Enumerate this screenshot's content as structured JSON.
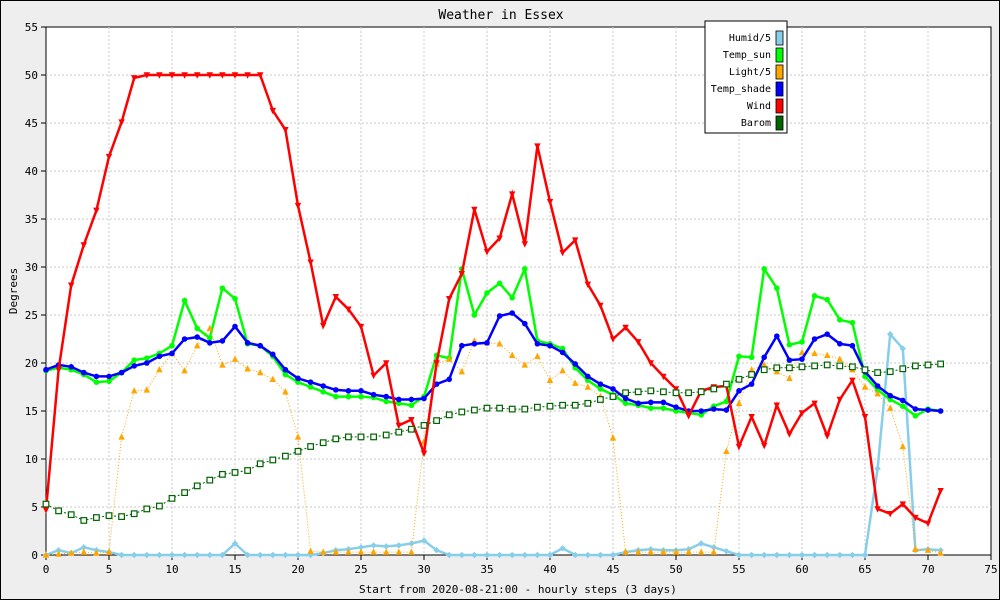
{
  "chart_data": {
    "type": "line",
    "title": "Weather in Essex",
    "xlabel": "Start from 2020-08-21:00 - hourly steps (3 days)",
    "ylabel": "Degrees",
    "xlim": [
      0,
      75
    ],
    "ylim": [
      0,
      55
    ],
    "x_ticks": [
      0,
      5,
      10,
      15,
      20,
      25,
      30,
      35,
      40,
      45,
      50,
      55,
      60,
      65,
      70,
      75
    ],
    "y_ticks": [
      0,
      5,
      10,
      15,
      20,
      25,
      30,
      35,
      40,
      45,
      50,
      55
    ],
    "grid": true,
    "legend_position": "top-right",
    "series": [
      {
        "name": "Humid/5",
        "color": "#87ceeb",
        "marker": "diamond",
        "values": [
          0,
          0.5,
          0.2,
          0.8,
          0.5,
          0.3,
          0,
          0,
          0,
          0,
          0,
          0,
          0,
          0,
          0,
          1.2,
          0,
          0,
          0,
          0,
          0,
          0,
          0.2,
          0.5,
          0.6,
          0.8,
          1,
          0.9,
          1,
          1.2,
          1.5,
          0.5,
          0,
          0,
          0,
          0,
          0,
          0,
          0,
          0,
          0,
          0.7,
          0,
          0,
          0,
          0,
          0.3,
          0.5,
          0.6,
          0.5,
          0.5,
          0.6,
          1.2,
          0.8,
          0.4,
          0,
          0,
          0,
          0,
          0,
          0,
          0,
          0,
          0,
          0,
          0,
          9,
          23,
          21.5,
          0.5,
          0.6,
          0.5
        ]
      },
      {
        "name": "Temp_sun",
        "color": "#00ff00",
        "marker": "circle",
        "values": [
          19.2,
          19.5,
          19.3,
          18.8,
          18,
          18.1,
          19,
          20.3,
          20.5,
          21,
          21.8,
          26.5,
          23.6,
          22.6,
          27.8,
          26.7,
          22,
          21.8,
          20.7,
          18.8,
          18,
          17.5,
          17,
          16.5,
          16.5,
          16.5,
          16.4,
          16,
          15.8,
          15.6,
          16.5,
          20.8,
          20.5,
          29.8,
          25,
          27.3,
          28.3,
          26.8,
          29.8,
          22.3,
          22,
          21.5,
          19.5,
          18.2,
          17.3,
          16.7,
          15.8,
          15.6,
          15.3,
          15.3,
          15,
          14.8,
          14.6,
          15.5,
          16,
          20.7,
          20.6,
          29.8,
          27.8,
          21.9,
          22.2,
          27,
          26.6,
          24.5,
          24.2,
          18.6,
          17.2,
          16.2,
          15.5,
          14.5,
          15.2,
          15
        ]
      },
      {
        "name": "Light/5",
        "color": "#ffa500",
        "marker": "triangle-up",
        "values": [
          0,
          0.1,
          0.2,
          0.3,
          0.2,
          0.3,
          12.3,
          17.1,
          17.2,
          19.3,
          21,
          19.2,
          21.8,
          23.6,
          19.8,
          20.4,
          19.4,
          19,
          18.3,
          17,
          12.3,
          0.4,
          0.3,
          0.3,
          0.3,
          0.3,
          0.3,
          0.3,
          0.3,
          0.3,
          11.8,
          19.9,
          20.4,
          19.1,
          22.3,
          22.1,
          22,
          20.8,
          19.8,
          20.7,
          18.2,
          19.2,
          17.9,
          17.5,
          16.5,
          12.2,
          0.3,
          0.3,
          0.3,
          0.3,
          0.3,
          0.3,
          0.3,
          0.3,
          10.8,
          15.8,
          19.3,
          19.8,
          19.1,
          18.4,
          21.1,
          21,
          20.8,
          20.4,
          19.3,
          17.5,
          16.8,
          15.3,
          11.3,
          0.6,
          0.5,
          0.2
        ]
      },
      {
        "name": "Temp_shade",
        "color": "#0000ff",
        "marker": "circle",
        "values": [
          19.3,
          19.8,
          19.6,
          19,
          18.6,
          18.6,
          19,
          19.7,
          20,
          20.7,
          21,
          22.5,
          22.7,
          22.1,
          22.3,
          23.8,
          22.1,
          21.8,
          20.9,
          19.3,
          18.4,
          18,
          17.6,
          17.2,
          17.1,
          17.1,
          16.7,
          16.5,
          16.2,
          16.2,
          16.3,
          17.8,
          18.3,
          21.8,
          22,
          22.1,
          24.9,
          25.2,
          24.1,
          22,
          21.8,
          21.1,
          19.9,
          18.6,
          17.8,
          17.3,
          16.3,
          15.8,
          15.9,
          15.9,
          15.4,
          15,
          15,
          15.2,
          15.1,
          17.1,
          17.8,
          20.6,
          22.8,
          20.3,
          20.4,
          22.5,
          23,
          22,
          21.8,
          19.1,
          17.6,
          16.6,
          16.1,
          15.2,
          15.1,
          15
        ]
      },
      {
        "name": "Wind",
        "color": "#ff0000",
        "marker": "triangle-down",
        "values": [
          4.7,
          19.3,
          28.1,
          32.3,
          35.9,
          41.5,
          45.1,
          49.7,
          50,
          50,
          50,
          50,
          50,
          50,
          50,
          50,
          50,
          50,
          46.3,
          44.3,
          36.4,
          30.5,
          23.9,
          26.9,
          25.6,
          23.8,
          18.7,
          20,
          13.5,
          14.1,
          10.6,
          20,
          26.7,
          29.3,
          36,
          31.6,
          33,
          37.6,
          32.4,
          42.6,
          36.8,
          31.5,
          32.8,
          28.2,
          26,
          22.5,
          23.7,
          22.2,
          20,
          18.6,
          17.3,
          14.5,
          17.1,
          17.5,
          17.6,
          11.3,
          14.4,
          11.4,
          15.6,
          12.6,
          14.8,
          15.8,
          12.4,
          16.2,
          18.2,
          14.4,
          4.8,
          4.3,
          5.3,
          3.9,
          3.3,
          6.7
        ]
      },
      {
        "name": "Barom",
        "color": "#006400",
        "marker": "square",
        "values": [
          5.3,
          4.6,
          4.2,
          3.6,
          3.9,
          4.1,
          4,
          4.3,
          4.8,
          5.1,
          5.9,
          6.5,
          7.2,
          7.8,
          8.4,
          8.6,
          8.8,
          9.5,
          9.9,
          10.3,
          10.8,
          11.3,
          11.7,
          12.1,
          12.3,
          12.3,
          12.3,
          12.5,
          12.8,
          13.1,
          13.5,
          14,
          14.6,
          14.9,
          15.1,
          15.3,
          15.3,
          15.2,
          15.2,
          15.4,
          15.5,
          15.6,
          15.6,
          15.8,
          16.2,
          16.5,
          16.9,
          17,
          17.1,
          17,
          16.9,
          16.9,
          17,
          17.3,
          17.8,
          18.3,
          18.8,
          19.3,
          19.5,
          19.5,
          19.6,
          19.7,
          19.8,
          19.7,
          19.6,
          19.3,
          19,
          19.1,
          19.4,
          19.7,
          19.8,
          19.9
        ]
      }
    ]
  }
}
